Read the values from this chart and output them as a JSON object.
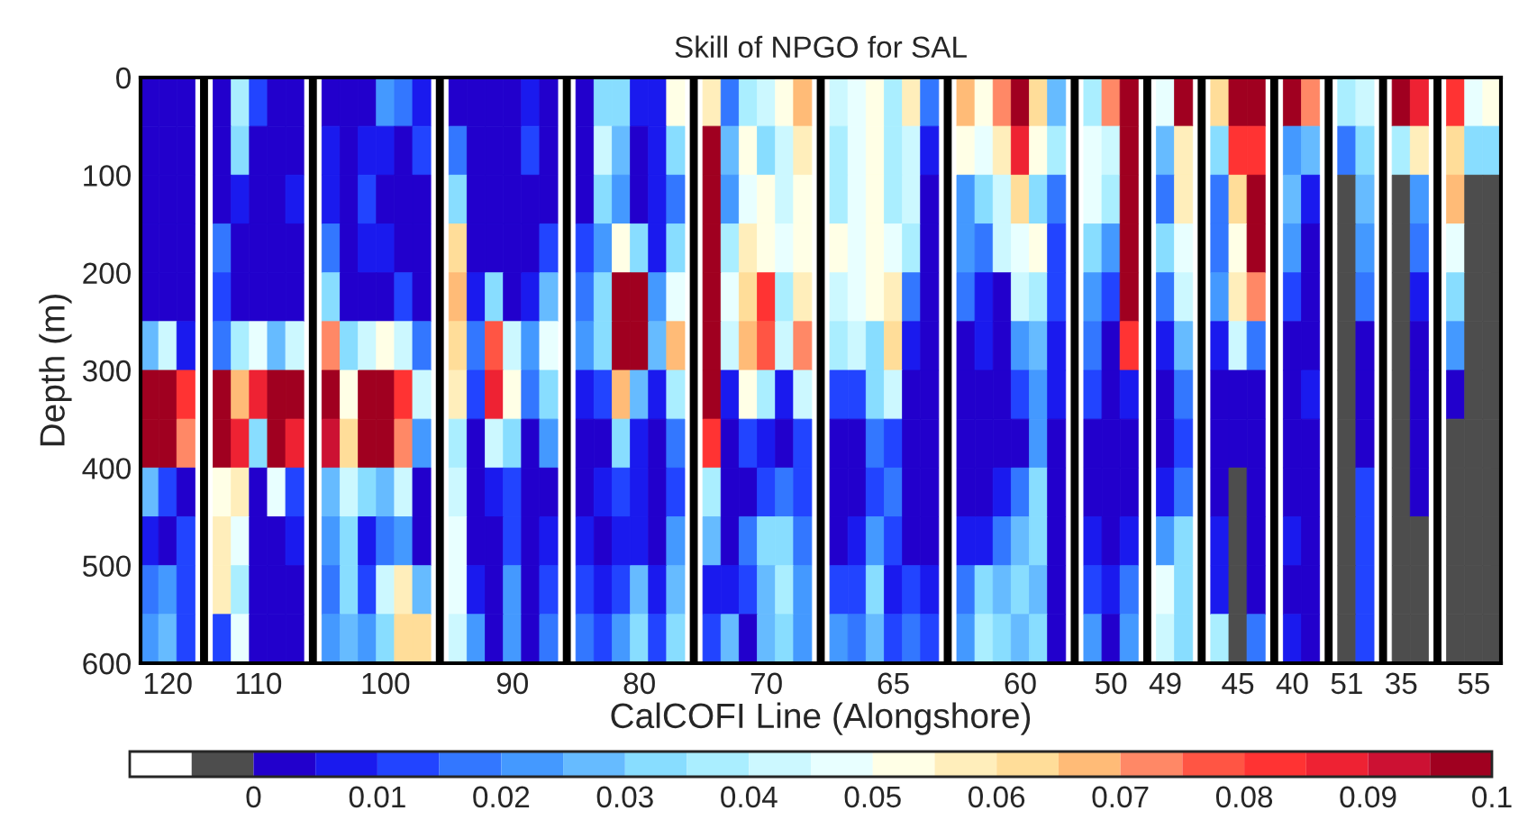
{
  "chart_data": {
    "type": "heatmap",
    "title": "Skill of NPGO for SAL",
    "xlabel": "CalCOFI Line (Alongshore)",
    "ylabel": "Depth (m)",
    "categories": [
      null,
      "120",
      null,
      null,
      null,
      null,
      "110",
      null,
      null,
      null,
      null,
      null,
      null,
      "100",
      null,
      null,
      null,
      null,
      null,
      null,
      "90",
      null,
      null,
      null,
      null,
      null,
      null,
      "80",
      null,
      null,
      null,
      null,
      null,
      null,
      "70",
      null,
      null,
      null,
      null,
      null,
      null,
      "65",
      null,
      null,
      null,
      null,
      null,
      null,
      "60",
      null,
      null,
      null,
      null,
      "50",
      null,
      null,
      "49",
      null,
      null,
      null,
      "45",
      null,
      null,
      "40",
      null,
      null,
      "51",
      null,
      null,
      "35",
      null,
      null,
      null,
      "55",
      null
    ],
    "ylim": [
      600,
      0
    ],
    "yticks": [
      0,
      100,
      200,
      300,
      400,
      500,
      600
    ],
    "clim": [
      -0.01,
      0.1
    ],
    "cticks": [
      0,
      0.01,
      0.02,
      0.03,
      0.04,
      0.05,
      0.06,
      0.07,
      0.08,
      0.09,
      0.1
    ],
    "cells": [
      [
        0.0025,
        0.0025,
        0.0025,
        null,
        0.0025,
        0.0375,
        0.0125,
        0.0025,
        0.0025,
        null,
        0.0025,
        0.0025,
        0.0025,
        0.0225,
        0.0175,
        0.0075,
        null,
        0.0025,
        0.0025,
        0.0025,
        0.0025,
        0.0075,
        0.0025,
        null,
        0.0025,
        0.0325,
        0.0325,
        0.0075,
        0.0075,
        0.0525,
        null,
        0.0575,
        0.0175,
        0.0375,
        0.0425,
        0.0525,
        0.0675,
        null,
        0.0425,
        0.0475,
        0.0525,
        0.0375,
        0.0575,
        0.0175,
        null,
        0.0675,
        0.0525,
        0.0725,
        0.0975,
        0.0625,
        0.0275,
        null,
        0.0375,
        0.0725,
        0.0975,
        null,
        0.0475,
        0.0975,
        null,
        0.0625,
        0.0975,
        0.0975,
        null,
        0.0975,
        0.0725,
        null,
        0.0375,
        0.0425,
        null,
        0.0975,
        0.0875,
        null,
        0.0825,
        0.0475,
        0.0525
      ],
      [
        0.0025,
        0.0025,
        0.0025,
        null,
        0.0025,
        0.0325,
        0.0025,
        0.0025,
        0.0025,
        null,
        0.0075,
        0.0025,
        0.0075,
        0.0075,
        0.0025,
        0.0125,
        null,
        0.0175,
        0.0025,
        0.0025,
        0.0025,
        0.0125,
        0.0025,
        null,
        0.0025,
        0.0425,
        0.0275,
        0.0025,
        0.0075,
        0.0325,
        null,
        0.0975,
        0.0275,
        0.0525,
        0.0325,
        0.0425,
        0.0575,
        null,
        0.0375,
        0.0475,
        0.0525,
        0.0375,
        0.0425,
        0.0075,
        null,
        0.0525,
        0.0475,
        0.0575,
        0.0875,
        0.0525,
        0.0375,
        null,
        0.0475,
        0.0425,
        0.0975,
        null,
        0.0275,
        0.0575,
        null,
        0.0325,
        0.0825,
        0.0825,
        null,
        0.0225,
        0.0275,
        null,
        0.0175,
        0.0325,
        null,
        0.0375,
        0.0575,
        null,
        0.0625,
        0.0325,
        0.0325
      ],
      [
        0.0025,
        0.0025,
        0.0025,
        null,
        0.0025,
        0.0075,
        0.0025,
        0.0025,
        0.0075,
        null,
        0.0075,
        0.0025,
        0.0125,
        0.0025,
        0.0025,
        0.0025,
        null,
        0.0325,
        0.0025,
        0.0025,
        0.0025,
        0.0025,
        0.0025,
        null,
        0.0025,
        0.0325,
        0.0225,
        0.0025,
        0.0075,
        0.0175,
        null,
        0.0975,
        0.0225,
        0.0475,
        0.0525,
        0.0425,
        0.0525,
        null,
        0.0375,
        0.0475,
        0.0525,
        0.0375,
        0.0425,
        0.0025,
        null,
        0.0225,
        0.0325,
        0.0425,
        0.0625,
        0.0325,
        0.0175,
        null,
        0.0475,
        0.0375,
        0.0975,
        null,
        0.0175,
        0.0575,
        null,
        0.0175,
        0.0625,
        0.0975,
        null,
        0.0275,
        0.0075,
        null,
        -0.0025,
        0.0275,
        null,
        -0.0025,
        0.0225,
        null,
        0.0675,
        -0.0025,
        -0.0025
      ],
      [
        0.0025,
        0.0025,
        0.0025,
        null,
        0.0175,
        0.0025,
        0.0025,
        0.0025,
        0.0025,
        null,
        0.0175,
        0.0025,
        0.0075,
        0.0075,
        0.0025,
        0.0025,
        null,
        0.0625,
        0.0025,
        0.0025,
        0.0025,
        0.0025,
        0.0125,
        null,
        0.0125,
        0.0225,
        0.0525,
        0.0325,
        0.0075,
        0.0325,
        null,
        0.0975,
        0.0375,
        0.0575,
        0.0525,
        0.0475,
        0.0525,
        null,
        0.0525,
        0.0475,
        0.0525,
        0.0475,
        0.0375,
        0.0025,
        null,
        0.0225,
        0.0175,
        0.0425,
        0.0475,
        0.0525,
        0.0125,
        null,
        0.0325,
        0.0225,
        0.0975,
        null,
        0.0325,
        0.0475,
        null,
        0.0175,
        0.0525,
        0.0975,
        null,
        0.0225,
        0.0025,
        null,
        -0.0025,
        0.0225,
        null,
        -0.0025,
        0.0175,
        null,
        0.0475,
        -0.0025,
        -0.0025
      ],
      [
        0.0025,
        0.0025,
        0.0025,
        null,
        0.0125,
        0.0025,
        0.0025,
        0.0025,
        0.0025,
        null,
        0.0325,
        0.0025,
        0.0025,
        0.0025,
        0.0125,
        0.0025,
        null,
        0.0675,
        0.0075,
        0.0325,
        0.0025,
        0.0075,
        0.0275,
        null,
        0.0175,
        0.0325,
        0.0975,
        0.0975,
        0.0225,
        0.0475,
        null,
        0.0975,
        0.0475,
        0.0625,
        0.0825,
        0.0375,
        0.0575,
        null,
        0.0425,
        0.0475,
        0.0525,
        0.0575,
        0.0175,
        0.0025,
        null,
        0.0175,
        0.0075,
        0.0025,
        0.0425,
        0.0375,
        0.0125,
        null,
        0.0225,
        0.0125,
        0.0975,
        null,
        0.0175,
        0.0425,
        null,
        0.0225,
        0.0575,
        0.0725,
        null,
        0.0125,
        0.0025,
        null,
        -0.0025,
        0.0175,
        null,
        -0.0025,
        0.0075,
        null,
        0.0325,
        -0.0025,
        -0.0025
      ],
      [
        0.0275,
        0.0425,
        0.0075,
        null,
        0.0175,
        0.0375,
        0.0475,
        0.0275,
        0.0425,
        null,
        0.0725,
        0.0325,
        0.0425,
        0.0525,
        0.0425,
        0.0175,
        null,
        0.0625,
        0.0175,
        0.0775,
        0.0425,
        0.0225,
        0.0475,
        null,
        0.0225,
        0.0325,
        0.0975,
        0.0975,
        0.0275,
        0.0675,
        null,
        0.0975,
        0.0425,
        0.0675,
        0.0775,
        0.0425,
        0.0725,
        null,
        0.0375,
        0.0425,
        0.0325,
        0.0625,
        0.0075,
        0.0025,
        null,
        0.0025,
        0.0075,
        0.0025,
        0.0225,
        0.0275,
        0.0075,
        null,
        0.0175,
        0.0025,
        0.0825,
        null,
        0.0075,
        0.0275,
        null,
        0.0075,
        0.0425,
        0.0175,
        null,
        0.0025,
        0.0025,
        null,
        -0.0025,
        0.0025,
        null,
        -0.0025,
        0.0025,
        null,
        0.0225,
        -0.0025,
        -0.0025
      ],
      [
        0.0975,
        0.0975,
        0.0825,
        null,
        0.0975,
        0.0675,
        0.0875,
        0.0975,
        0.0975,
        null,
        0.0975,
        0.0525,
        0.0975,
        0.0975,
        0.0825,
        0.0425,
        null,
        0.0575,
        0.0125,
        0.0875,
        0.0525,
        0.0175,
        0.0325,
        null,
        0.0075,
        0.0125,
        0.0675,
        0.0275,
        0.0075,
        0.0375,
        null,
        0.0975,
        0.0075,
        0.0525,
        0.0375,
        0.0075,
        0.0425,
        null,
        0.0125,
        0.0125,
        0.0325,
        0.0425,
        0.0025,
        0.0025,
        null,
        0.0025,
        0.0025,
        0.0025,
        0.0125,
        0.0225,
        0.0075,
        null,
        0.0125,
        0.0025,
        0.0075,
        null,
        0.0025,
        0.0175,
        null,
        0.0025,
        0.0025,
        0.0025,
        null,
        0.0025,
        0.0075,
        null,
        -0.0025,
        0.0025,
        null,
        -0.0025,
        0.0025,
        null,
        0.0025,
        -0.0025,
        -0.0025
      ],
      [
        0.0975,
        0.0975,
        0.0725,
        null,
        0.0975,
        0.0875,
        0.0325,
        0.0975,
        0.0875,
        null,
        0.0925,
        0.0625,
        0.0975,
        0.0975,
        0.0725,
        0.0225,
        null,
        0.0375,
        0.0025,
        0.0425,
        0.0325,
        0.0025,
        0.0225,
        null,
        0.0025,
        0.0025,
        0.0325,
        0.0075,
        0.0025,
        0.0175,
        null,
        0.0825,
        0.0025,
        0.0125,
        0.0075,
        0.0025,
        0.0125,
        null,
        0.0025,
        0.0025,
        0.0175,
        0.0125,
        0.0025,
        0.0025,
        null,
        0.0025,
        0.0025,
        0.0025,
        0.0025,
        0.0225,
        0.0025,
        null,
        0.0025,
        0.0025,
        0.0025,
        null,
        0.0025,
        0.0125,
        null,
        0.0025,
        0.0025,
        0.0025,
        null,
        0.0025,
        0.0025,
        null,
        -0.0025,
        0.0025,
        null,
        -0.0025,
        0.0025,
        null,
        -0.0025,
        -0.0025,
        -0.0025
      ],
      [
        0.0275,
        0.0125,
        0.0025,
        null,
        0.0525,
        0.0575,
        0.0025,
        0.0475,
        0.0125,
        null,
        0.0275,
        0.0425,
        0.0325,
        0.0275,
        0.0425,
        0.0025,
        null,
        0.0425,
        0.0025,
        0.0075,
        0.0125,
        0.0025,
        0.0025,
        null,
        0.0025,
        0.0075,
        0.0125,
        0.0075,
        0.0025,
        0.0125,
        null,
        0.0375,
        0.0025,
        0.0025,
        0.0125,
        0.0175,
        0.0125,
        null,
        0.0025,
        0.0025,
        0.0125,
        0.0175,
        0.0025,
        0.0025,
        null,
        0.0025,
        0.0025,
        0.0075,
        0.0175,
        0.0325,
        0.0025,
        null,
        0.0025,
        0.0025,
        0.0025,
        null,
        0.0075,
        0.0175,
        null,
        0.0025,
        -0.0025,
        0.0025,
        null,
        0.0025,
        0.0025,
        null,
        -0.0025,
        0.0125,
        null,
        -0.0025,
        0.0025,
        null,
        -0.0025,
        -0.0025,
        -0.0025
      ],
      [
        0.0075,
        0.0025,
        0.0125,
        null,
        0.0575,
        0.0475,
        0.0025,
        0.0025,
        0.0075,
        null,
        0.0225,
        0.0325,
        0.0075,
        0.0175,
        0.0225,
        0.0025,
        null,
        0.0475,
        0.0025,
        0.0025,
        0.0125,
        0.0025,
        0.0075,
        null,
        0.0075,
        0.0025,
        0.0075,
        0.0075,
        0.0025,
        0.0225,
        null,
        0.0275,
        0.0025,
        0.0175,
        0.0325,
        0.0325,
        0.0175,
        null,
        0.0025,
        0.0075,
        0.0225,
        0.0125,
        0.0025,
        0.0025,
        null,
        0.0075,
        0.0075,
        0.0175,
        0.0275,
        0.0325,
        0.0025,
        null,
        0.0075,
        0.0025,
        0.0075,
        null,
        0.0225,
        0.0325,
        null,
        0.0075,
        -0.0025,
        0.0025,
        null,
        0.0075,
        0.0025,
        null,
        -0.0025,
        0.0125,
        null,
        -0.0025,
        -0.0025,
        null,
        -0.0025,
        -0.0025,
        -0.0025
      ],
      [
        0.0175,
        0.0225,
        0.0125,
        null,
        0.0575,
        0.0375,
        0.0025,
        0.0025,
        0.0025,
        null,
        0.0175,
        0.0325,
        0.0125,
        0.0425,
        0.0575,
        0.0275,
        null,
        0.0475,
        0.0075,
        0.0025,
        0.0225,
        0.0025,
        0.0125,
        null,
        0.0125,
        0.0075,
        0.0125,
        0.0275,
        0.0075,
        0.0275,
        null,
        0.0075,
        0.0075,
        0.0125,
        0.0275,
        0.0375,
        0.0225,
        null,
        0.0125,
        0.0125,
        0.0325,
        0.0075,
        0.0125,
        0.0075,
        null,
        0.0175,
        0.0325,
        0.0275,
        0.0325,
        0.0275,
        0.0025,
        null,
        0.0125,
        0.0075,
        0.0175,
        null,
        0.0475,
        0.0325,
        null,
        0.0075,
        -0.0025,
        0.0025,
        null,
        0.0025,
        0.0025,
        null,
        -0.0025,
        0.0125,
        null,
        -0.0025,
        -0.0025,
        null,
        -0.0025,
        -0.0025,
        -0.0025
      ],
      [
        0.0225,
        0.0275,
        0.0125,
        null,
        0.0125,
        0.0475,
        0.0025,
        0.0025,
        0.0025,
        null,
        0.0225,
        0.0275,
        0.0225,
        0.0325,
        0.0625,
        0.0625,
        null,
        0.0425,
        0.0225,
        0.0025,
        0.0225,
        0.0025,
        0.0175,
        null,
        0.0175,
        0.0125,
        0.0225,
        0.0325,
        0.0125,
        0.0325,
        null,
        0.0125,
        0.0275,
        0.0025,
        0.0275,
        0.0325,
        0.0225,
        null,
        0.0225,
        0.0175,
        0.0275,
        0.0125,
        0.0175,
        0.0125,
        null,
        0.0225,
        0.0375,
        0.0325,
        0.0275,
        0.0325,
        0.0025,
        null,
        0.0225,
        0.0025,
        0.0225,
        null,
        0.0425,
        0.0325,
        null,
        0.0375,
        -0.0025,
        0.0175,
        null,
        0.0075,
        0.0025,
        null,
        -0.0025,
        0.0125,
        null,
        -0.0025,
        -0.0025,
        null,
        -0.0025,
        -0.0025,
        -0.0025
      ]
    ]
  }
}
